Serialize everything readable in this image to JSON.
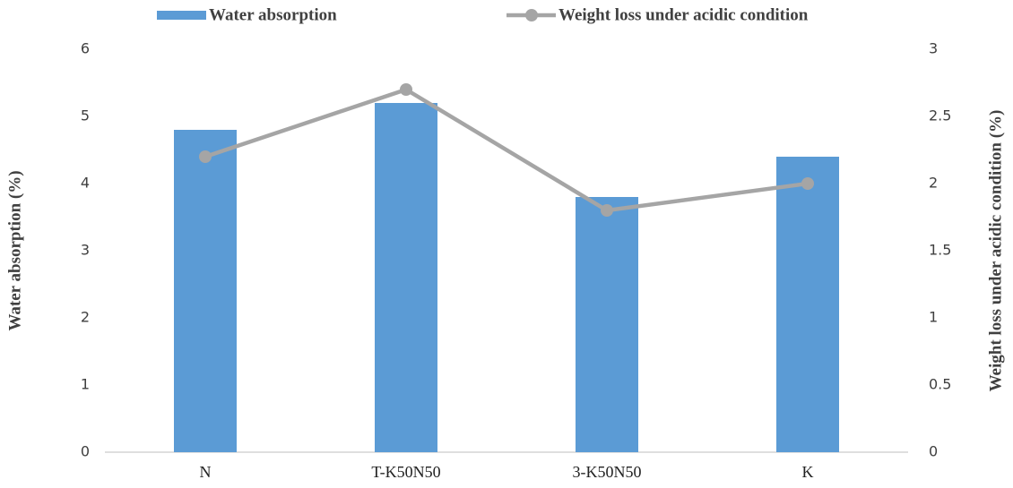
{
  "chart_data": {
    "type": "bar",
    "categories": [
      "N",
      "T-K50N50",
      "3-K50N50",
      "K"
    ],
    "series": [
      {
        "name": "Water absorption",
        "color": "#5b9bd5",
        "type": "bar",
        "values": [
          4.8,
          5.2,
          3.8,
          4.4
        ]
      },
      {
        "name": "Weight loss under acidic condition",
        "color": "#a5a5a5",
        "type": "line",
        "axis": "y2",
        "values": [
          2.2,
          2.7,
          1.8,
          2.0
        ]
      }
    ],
    "y_label": "Water absorption (%)",
    "y2_label": "Weight loss under acidic condition (%)",
    "ylim": [
      0,
      6
    ],
    "yticks": [
      0,
      1,
      2,
      3,
      4,
      5,
      6
    ],
    "y2lim": [
      0,
      3
    ],
    "y2ticks": [
      0,
      0.5,
      1,
      1.5,
      2,
      2.5,
      3
    ],
    "grid": false,
    "legend": "top"
  }
}
